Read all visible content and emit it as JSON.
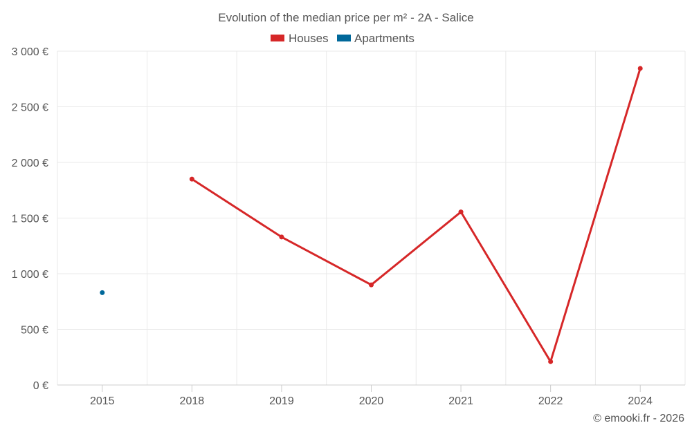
{
  "chart_data": {
    "type": "line",
    "title": "Evolution of the median price per m² - 2A - Salice",
    "categories": [
      "2015",
      "2018",
      "2019",
      "2020",
      "2021",
      "2022",
      "2024"
    ],
    "ylim": [
      0,
      3000
    ],
    "yticks": [
      0,
      500,
      1000,
      1500,
      2000,
      2500,
      3000
    ],
    "ytick_labels": [
      "0 €",
      "500 €",
      "1 000 €",
      "1 500 €",
      "2 000 €",
      "2 500 €",
      "3 000 €"
    ],
    "grid": true,
    "legend_position": "top-center",
    "series": [
      {
        "name": "Houses",
        "color": "#d62728",
        "values": [
          null,
          1850,
          1330,
          900,
          1555,
          210,
          2845
        ]
      },
      {
        "name": "Apartments",
        "color": "#00689a",
        "values": [
          830,
          null,
          null,
          null,
          null,
          null,
          null
        ]
      }
    ],
    "credit": "© emooki.fr - 2026"
  }
}
